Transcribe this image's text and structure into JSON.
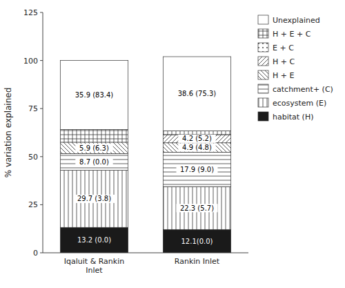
{
  "chart_data": {
    "type": "bar",
    "stacked": true,
    "data_labels": true,
    "grid": false,
    "legend": "right",
    "y_label": "% variation explained",
    "categories": [
      "Iqaluit & Rankin\nInlet",
      "Rankin Inlet"
    ],
    "ylim": [
      0,
      125
    ],
    "yticks": [
      0,
      25,
      50,
      75,
      100,
      125
    ],
    "series": [
      {
        "name": "habitat (H)",
        "color": "#1a1a1a",
        "values": [
          13.2,
          12.1
        ],
        "value_labels": [
          "13.2 (0.0)",
          "12.1(0.0)"
        ]
      },
      {
        "name": "ecosystem (E)",
        "color": "#ffffff",
        "values": [
          29.7,
          22.3
        ],
        "value_labels": [
          "29.7 (3.8)",
          "22.3 (5.7)"
        ]
      },
      {
        "name": "catchment+ (C)",
        "color": "#ffffff",
        "values": [
          8.7,
          17.9
        ],
        "value_labels": [
          "8.7 (0.0)",
          "17.9 (9.0)"
        ]
      },
      {
        "name": "H + E",
        "color": "#ffffff",
        "values": [
          5.9,
          4.9
        ],
        "value_labels": [
          "5.9 (6.3)",
          "4.9 (4.8)"
        ]
      },
      {
        "name": "H + C",
        "color": "#ffffff",
        "values": [
          0.0,
          4.2
        ],
        "value_labels": [
          null,
          "4.2 (5.2)"
        ]
      },
      {
        "name": "E + C",
        "color": "#ffffff",
        "values": [
          0.0,
          0.0
        ],
        "value_labels": [
          null,
          null
        ]
      },
      {
        "name": "H + E + C",
        "color": "#ffffff",
        "values": [
          6.6,
          2.0
        ],
        "value_labels": [
          null,
          null
        ]
      },
      {
        "name": "Unexplained",
        "color": "#ffffff",
        "values": [
          35.9,
          38.6
        ],
        "value_labels": [
          "35.9 (83.4)",
          "38.6 (75.3)"
        ]
      }
    ]
  }
}
